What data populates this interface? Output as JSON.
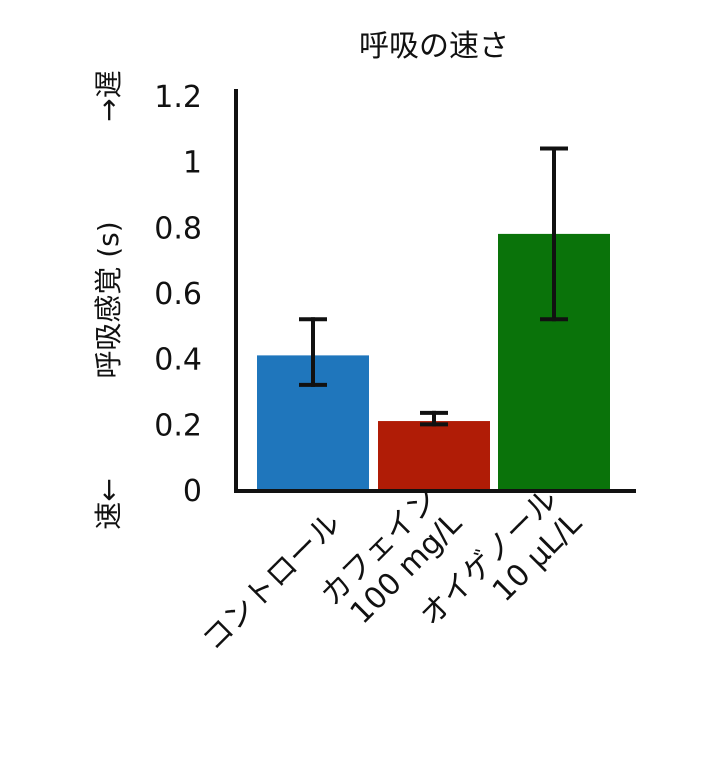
{
  "chart_data": {
    "type": "bar",
    "title": "呼吸の速さ",
    "ylabel": "呼吸感覚 (s)",
    "y_top_annotation": "→遅",
    "y_bottom_annotation": "速←",
    "ylim": [
      0,
      1.2
    ],
    "y_ticks": [
      {
        "value": 0,
        "label": "0"
      },
      {
        "value": 0.2,
        "label": "0.2"
      },
      {
        "value": 0.4,
        "label": "0.4"
      },
      {
        "value": 0.6,
        "label": "0.6"
      },
      {
        "value": 0.8,
        "label": "0.8"
      },
      {
        "value": 1.0,
        "label": "1"
      },
      {
        "value": 1.2,
        "label": "1.2"
      }
    ],
    "categories": [
      {
        "lines": [
          "コントロール"
        ]
      },
      {
        "lines": [
          "カフェイン",
          "100 mg/L"
        ]
      },
      {
        "lines": [
          "オイゲノール",
          "10 μL/L"
        ]
      }
    ],
    "values": [
      0.41,
      0.21,
      0.78
    ],
    "error_low": [
      0.32,
      0.2,
      0.52
    ],
    "error_high": [
      0.52,
      0.235,
      1.04
    ],
    "colors": [
      "#1f76bc",
      "#b01c06",
      "#0a730a"
    ],
    "grid": false,
    "legend": "none"
  }
}
